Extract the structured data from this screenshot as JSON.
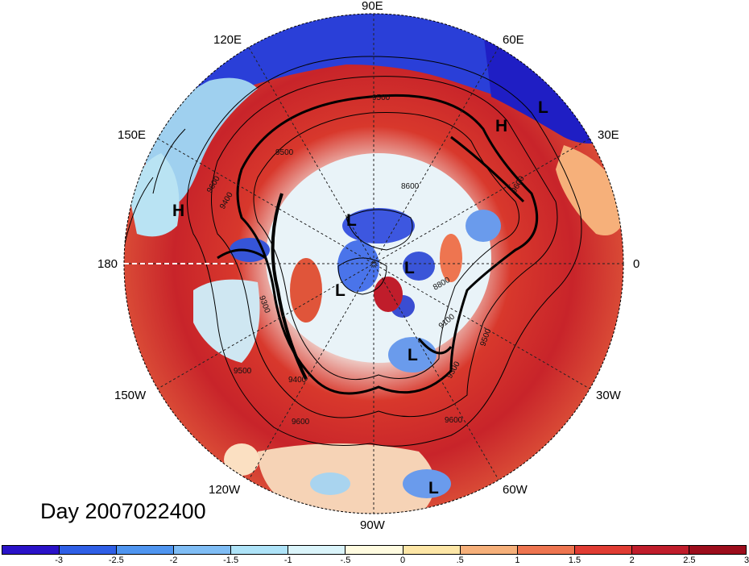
{
  "date_label": "Day 2007022400",
  "longitude_labels": {
    "e90": "90E",
    "e120": "120E",
    "e60": "60E",
    "e150": "150E",
    "e30": "30E",
    "lon180": "180",
    "lon0": "0",
    "w150": "150W",
    "w30": "30W",
    "w120": "120W",
    "w60": "60W",
    "w90": "90W"
  },
  "contour_labels": [
    "9600",
    "9500",
    "9400",
    "9300",
    "9100",
    "8800",
    "8600",
    "9600",
    "9500",
    "9500",
    "9600",
    "9400",
    "9300",
    "9500",
    "9600"
  ],
  "pressure_markers": [
    {
      "text": "H",
      "kind": "high"
    },
    {
      "text": "H",
      "kind": "high"
    },
    {
      "text": "L",
      "kind": "low"
    },
    {
      "text": "L",
      "kind": "low"
    },
    {
      "text": "L",
      "kind": "low"
    },
    {
      "text": "L",
      "kind": "low"
    },
    {
      "text": "L",
      "kind": "low"
    },
    {
      "text": "L",
      "kind": "low"
    }
  ],
  "colorbar": {
    "colors": [
      "#2a12c8",
      "#2f5fe6",
      "#4f95f0",
      "#7fbdf5",
      "#aee3f8",
      "#daf4fa",
      "#fffbe0",
      "#fde6a6",
      "#f6b07a",
      "#ee7550",
      "#e03c33",
      "#c01d2b",
      "#9c0d1c"
    ],
    "labels": [
      "-3",
      "-2.5",
      "-2",
      "-1.5",
      "-1",
      "-.5",
      "0",
      ".5",
      "1",
      "1.5",
      "2",
      "2.5",
      "3"
    ]
  },
  "color_roles": {
    "cold": "#2a12c8",
    "warm": "#c01d2b",
    "neutral": "#f3f6ee",
    "contour": "#000000"
  }
}
